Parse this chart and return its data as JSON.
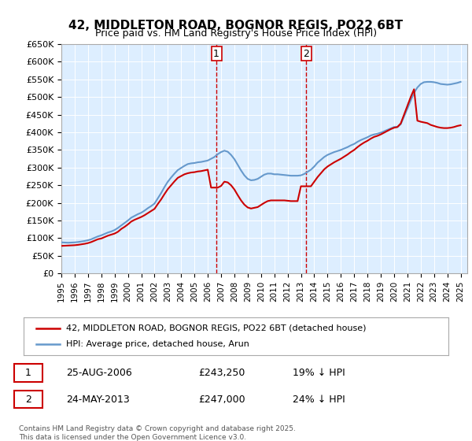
{
  "title": "42, MIDDLETON ROAD, BOGNOR REGIS, PO22 6BT",
  "subtitle": "Price paid vs. HM Land Registry's House Price Index (HPI)",
  "legend_line1": "42, MIDDLETON ROAD, BOGNOR REGIS, PO22 6BT (detached house)",
  "legend_line2": "HPI: Average price, detached house, Arun",
  "footnote": "Contains HM Land Registry data © Crown copyright and database right 2025.\nThis data is licensed under the Open Government Licence v3.0.",
  "ylabel": "",
  "ylim": [
    0,
    650000
  ],
  "yticks": [
    0,
    50000,
    100000,
    150000,
    200000,
    250000,
    300000,
    350000,
    400000,
    450000,
    500000,
    550000,
    600000,
    650000
  ],
  "ytick_labels": [
    "£0",
    "£50K",
    "£100K",
    "£150K",
    "£200K",
    "£250K",
    "£300K",
    "£350K",
    "£400K",
    "£450K",
    "£500K",
    "£550K",
    "£600K",
    "£650K"
  ],
  "xlim_start": 1995.0,
  "xlim_end": 2025.5,
  "marker1_x": 2006.65,
  "marker1_label": "1",
  "marker1_date": "25-AUG-2006",
  "marker1_price": "£243,250",
  "marker1_hpi": "19% ↓ HPI",
  "marker2_x": 2013.4,
  "marker2_label": "2",
  "marker2_date": "24-MAY-2013",
  "marker2_price": "£247,000",
  "marker2_hpi": "24% ↓ HPI",
  "red_color": "#cc0000",
  "blue_color": "#6699cc",
  "background_color": "#ddeeff",
  "hpi_data_x": [
    1995.0,
    1995.25,
    1995.5,
    1995.75,
    1996.0,
    1996.25,
    1996.5,
    1996.75,
    1997.0,
    1997.25,
    1997.5,
    1997.75,
    1998.0,
    1998.25,
    1998.5,
    1998.75,
    1999.0,
    1999.25,
    1999.5,
    1999.75,
    2000.0,
    2000.25,
    2000.5,
    2000.75,
    2001.0,
    2001.25,
    2001.5,
    2001.75,
    2002.0,
    2002.25,
    2002.5,
    2002.75,
    2003.0,
    2003.25,
    2003.5,
    2003.75,
    2004.0,
    2004.25,
    2004.5,
    2004.75,
    2005.0,
    2005.25,
    2005.5,
    2005.75,
    2006.0,
    2006.25,
    2006.5,
    2006.75,
    2007.0,
    2007.25,
    2007.5,
    2007.75,
    2008.0,
    2008.25,
    2008.5,
    2008.75,
    2009.0,
    2009.25,
    2009.5,
    2009.75,
    2010.0,
    2010.25,
    2010.5,
    2010.75,
    2011.0,
    2011.25,
    2011.5,
    2011.75,
    2012.0,
    2012.25,
    2012.5,
    2012.75,
    2013.0,
    2013.25,
    2013.5,
    2013.75,
    2014.0,
    2014.25,
    2014.5,
    2014.75,
    2015.0,
    2015.25,
    2015.5,
    2015.75,
    2016.0,
    2016.25,
    2016.5,
    2016.75,
    2017.0,
    2017.25,
    2017.5,
    2017.75,
    2018.0,
    2018.25,
    2018.5,
    2018.75,
    2019.0,
    2019.25,
    2019.5,
    2019.75,
    2020.0,
    2020.25,
    2020.5,
    2020.75,
    2021.0,
    2021.25,
    2021.5,
    2021.75,
    2022.0,
    2022.25,
    2022.5,
    2022.75,
    2023.0,
    2023.25,
    2023.5,
    2023.75,
    2024.0,
    2024.25,
    2024.5,
    2024.75,
    2025.0
  ],
  "hpi_data_y": [
    88000,
    87500,
    87000,
    87500,
    88000,
    89000,
    90500,
    92000,
    94000,
    97000,
    101000,
    105000,
    108000,
    112000,
    116000,
    119000,
    123000,
    129000,
    136000,
    143000,
    150000,
    158000,
    163000,
    168000,
    172000,
    178000,
    185000,
    191000,
    198000,
    213000,
    228000,
    245000,
    260000,
    272000,
    283000,
    293000,
    299000,
    305000,
    310000,
    312000,
    313000,
    315000,
    316000,
    318000,
    320000,
    325000,
    330000,
    338000,
    344000,
    348000,
    345000,
    336000,
    324000,
    308000,
    292000,
    278000,
    268000,
    264000,
    265000,
    268000,
    274000,
    280000,
    283000,
    283000,
    281000,
    281000,
    280000,
    279000,
    278000,
    277000,
    277000,
    277000,
    278000,
    282000,
    288000,
    294000,
    303000,
    314000,
    322000,
    330000,
    336000,
    340000,
    344000,
    347000,
    350000,
    354000,
    358000,
    363000,
    367000,
    373000,
    378000,
    382000,
    386000,
    391000,
    394000,
    396000,
    399000,
    403000,
    407000,
    411000,
    415000,
    415000,
    423000,
    445000,
    467000,
    490000,
    512000,
    527000,
    537000,
    542000,
    543000,
    543000,
    542000,
    540000,
    537000,
    536000,
    535000,
    536000,
    538000,
    540000,
    543000
  ],
  "price_data_x": [
    1995.0,
    1995.25,
    1995.5,
    1995.75,
    1996.0,
    1996.25,
    1996.5,
    1996.75,
    1997.0,
    1997.25,
    1997.5,
    1997.75,
    1998.0,
    1998.25,
    1998.5,
    1998.75,
    1999.0,
    1999.25,
    1999.5,
    1999.75,
    2000.0,
    2000.25,
    2000.5,
    2000.75,
    2001.0,
    2001.25,
    2001.5,
    2001.75,
    2002.0,
    2002.25,
    2002.5,
    2002.75,
    2003.0,
    2003.25,
    2003.5,
    2003.75,
    2004.0,
    2004.25,
    2004.5,
    2004.75,
    2005.0,
    2005.25,
    2005.5,
    2005.75,
    2006.0,
    2006.25,
    2006.5,
    2006.75,
    2007.0,
    2007.25,
    2007.5,
    2007.75,
    2008.0,
    2008.25,
    2008.5,
    2008.75,
    2009.0,
    2009.25,
    2009.5,
    2009.75,
    2010.0,
    2010.25,
    2010.5,
    2010.75,
    2011.0,
    2011.25,
    2011.5,
    2011.75,
    2012.0,
    2012.25,
    2012.5,
    2012.75,
    2013.0,
    2013.25,
    2013.5,
    2013.75,
    2014.0,
    2014.25,
    2014.5,
    2014.75,
    2015.0,
    2015.25,
    2015.5,
    2015.75,
    2016.0,
    2016.25,
    2016.5,
    2016.75,
    2017.0,
    2017.25,
    2017.5,
    2017.75,
    2018.0,
    2018.25,
    2018.5,
    2018.75,
    2019.0,
    2019.25,
    2019.5,
    2019.75,
    2020.0,
    2020.25,
    2020.5,
    2020.75,
    2021.0,
    2021.25,
    2021.5,
    2021.75,
    2022.0,
    2022.25,
    2022.5,
    2022.75,
    2023.0,
    2023.25,
    2023.5,
    2023.75,
    2024.0,
    2024.25,
    2024.5,
    2024.75,
    2025.0
  ],
  "price_data_y": [
    78000,
    78500,
    79000,
    79500,
    80000,
    81000,
    82500,
    84000,
    86000,
    89000,
    93000,
    97000,
    99000,
    103000,
    107000,
    110000,
    113000,
    118000,
    126000,
    132000,
    139000,
    147000,
    152000,
    156000,
    160000,
    165000,
    171000,
    177000,
    183000,
    197000,
    210000,
    225000,
    239000,
    250000,
    261000,
    271000,
    276000,
    281000,
    284000,
    286000,
    287000,
    289000,
    290000,
    292000,
    294000,
    243250,
    243250,
    243250,
    248000,
    260000,
    258000,
    250000,
    238000,
    222000,
    207000,
    195000,
    187000,
    184000,
    186000,
    188000,
    194000,
    200000,
    205000,
    207000,
    207000,
    207000,
    207000,
    207000,
    206000,
    205000,
    205000,
    205000,
    247000,
    247000,
    247000,
    247000,
    260000,
    273000,
    284000,
    295000,
    303000,
    309000,
    315000,
    320000,
    325000,
    331000,
    337000,
    344000,
    350000,
    358000,
    365000,
    371000,
    376000,
    382000,
    387000,
    390000,
    394000,
    399000,
    404000,
    409000,
    413000,
    415000,
    425000,
    450000,
    475000,
    500000,
    522000,
    433000,
    430000,
    428000,
    426000,
    421000,
    418000,
    415000,
    413000,
    412000,
    412000,
    413000,
    415000,
    418000,
    420000
  ]
}
